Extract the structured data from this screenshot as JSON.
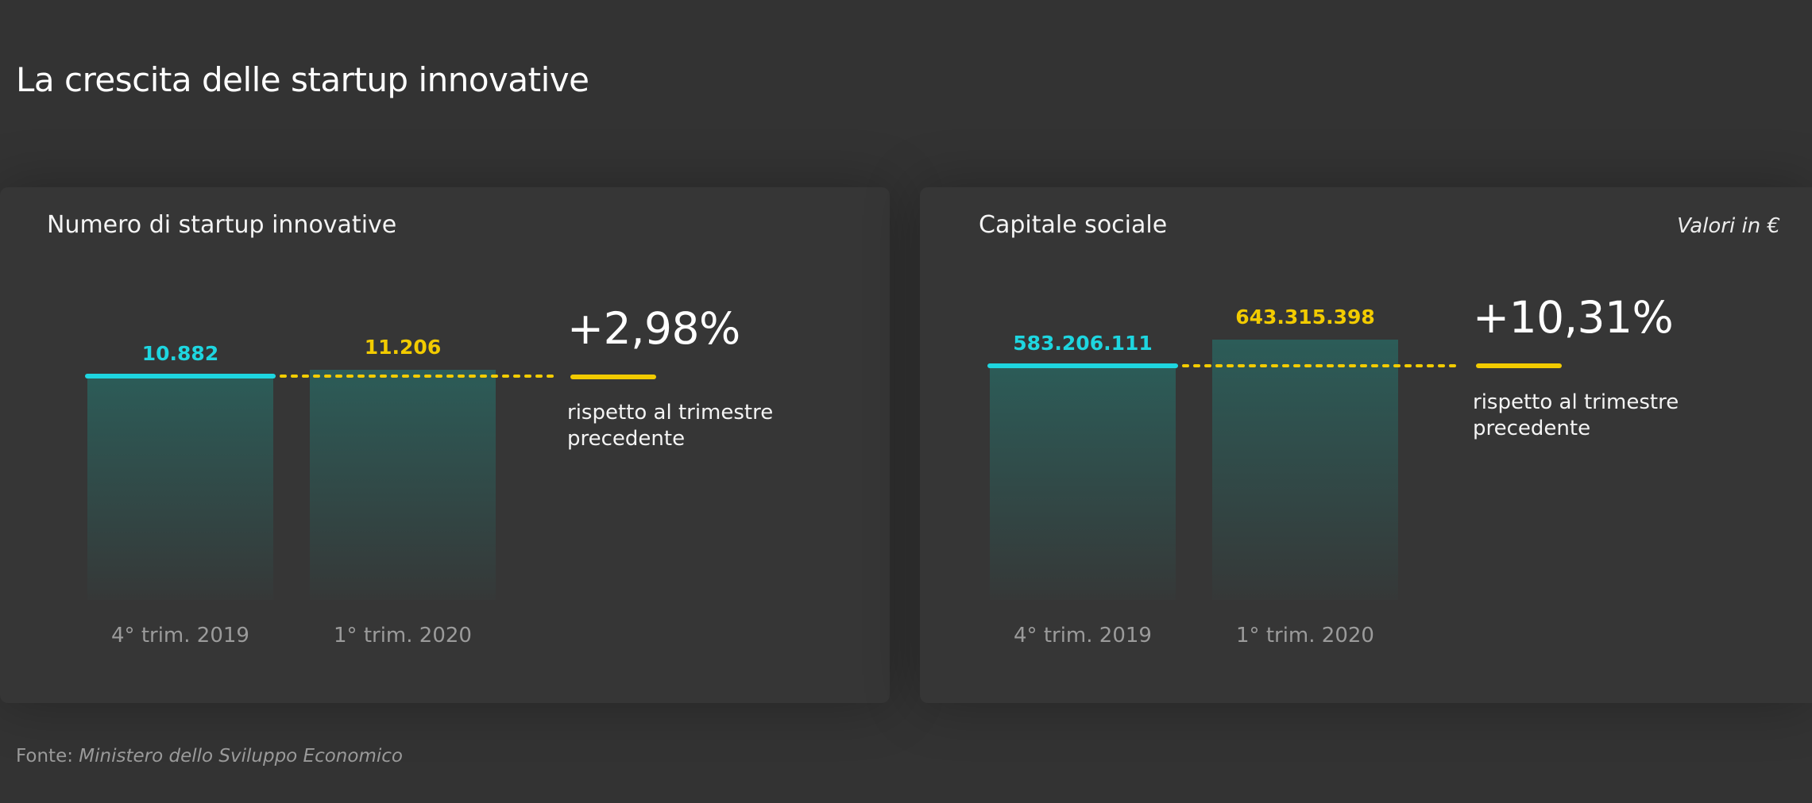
{
  "title": "La crescita delle startup innovative",
  "colors": {
    "background": "#333333",
    "card": "#363636",
    "previous": "#1ed6e0",
    "current": "#f2cb00",
    "bar_fill_top": "#2c5c58",
    "text": "#ffffff",
    "muted": "#9b9b9b"
  },
  "panels": [
    {
      "title": "Numero di startup innovative",
      "unit_note": "",
      "change": "+2,98%",
      "change_note": "rispetto al trimestre precedente"
    },
    {
      "title": "Capitale sociale",
      "unit_note": "Valori in €",
      "change": "+10,31%",
      "change_note": "rispetto al trimestre precedente"
    }
  ],
  "chart_data": [
    {
      "type": "bar",
      "title": "Numero di startup innovative",
      "categories": [
        "4° trim. 2019",
        "1° trim. 2020"
      ],
      "values": [
        10882,
        11206
      ],
      "value_labels": [
        "10.882",
        "11.206"
      ],
      "change_label": "+2,98%",
      "axis_truncated": true
    },
    {
      "type": "bar",
      "title": "Capitale sociale",
      "unit": "Valori in €",
      "categories": [
        "4° trim. 2019",
        "1° trim. 2020"
      ],
      "values": [
        583206111,
        643315398
      ],
      "value_labels": [
        "583.206.111",
        "643.315.398"
      ],
      "change_label": "+10,31%",
      "axis_truncated": true
    }
  ],
  "source": {
    "prefix": "Fonte:",
    "name": "Ministero dello Sviluppo Economico"
  }
}
